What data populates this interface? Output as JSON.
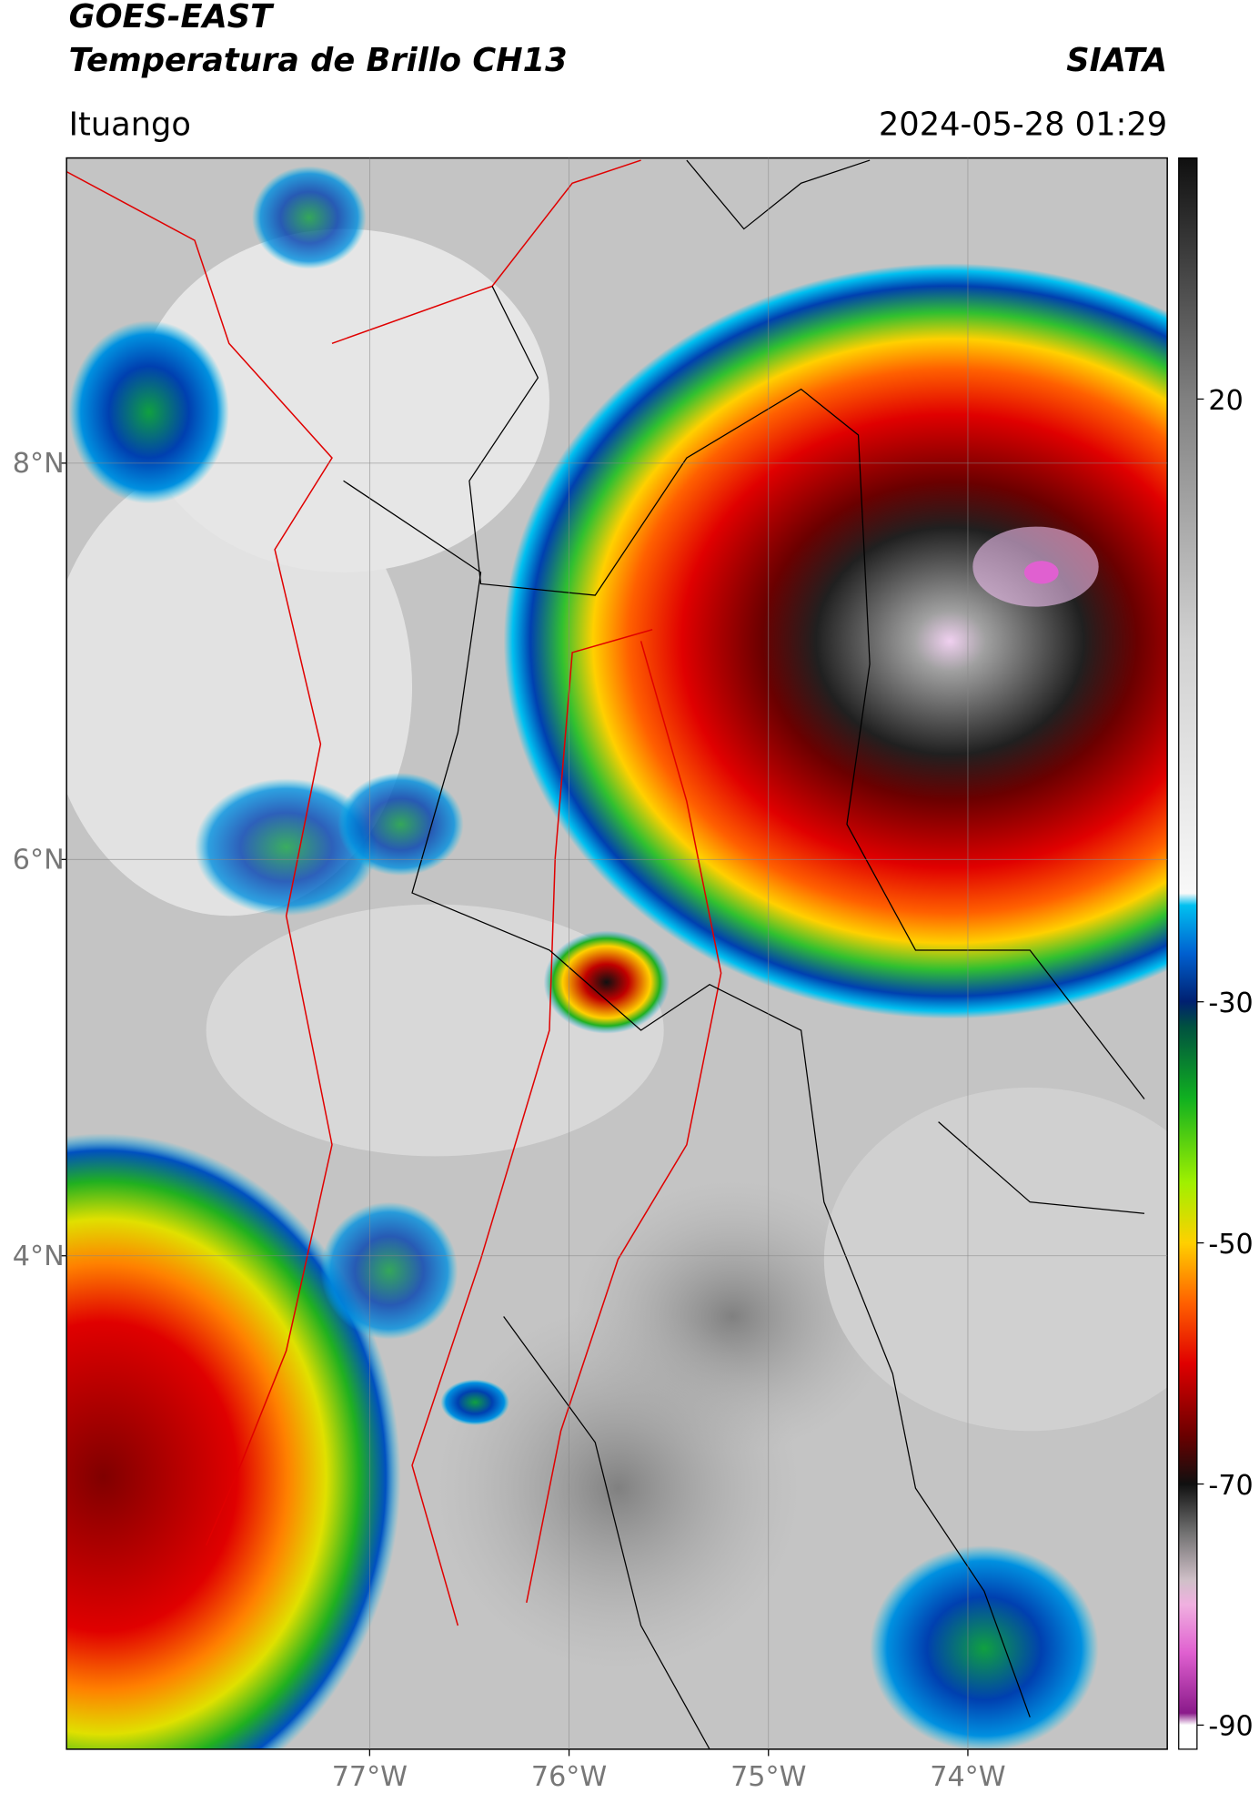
{
  "chart_data": {
    "type": "map",
    "title": "GOES-EAST",
    "subtitle": "Temperatura de Brillo CH13",
    "source": "SIATA",
    "location": "Ituango",
    "datetime": "2024-05-28 01:29",
    "xlim": [
      -78.52,
      -73.0
    ],
    "ylim": [
      1.51,
      9.54
    ],
    "xticks": [
      {
        "value": -77,
        "label": "77°W"
      },
      {
        "value": -76,
        "label": "76°W"
      },
      {
        "value": -75,
        "label": "75°W"
      },
      {
        "value": -74,
        "label": "74°W"
      }
    ],
    "yticks": [
      {
        "value": 4,
        "label": "4°N"
      },
      {
        "value": 6,
        "label": "6°N"
      },
      {
        "value": 8,
        "label": "8°N"
      }
    ],
    "grid": true,
    "clim": [
      -92,
      40
    ],
    "cticks": [
      -90,
      -70,
      -50,
      -30,
      20
    ],
    "colormap": [
      {
        "value": -92,
        "color": "#ffffff"
      },
      {
        "value": -90,
        "color": "#ffffff"
      },
      {
        "value": -89,
        "color": "#8a1a8a"
      },
      {
        "value": -84,
        "color": "#e060d0"
      },
      {
        "value": -80,
        "color": "#f0b0e0"
      },
      {
        "value": -78,
        "color": "#d0c0c8"
      },
      {
        "value": -74,
        "color": "#707070"
      },
      {
        "value": -70,
        "color": "#101010"
      },
      {
        "value": -66,
        "color": "#6a0000"
      },
      {
        "value": -60,
        "color": "#e00000"
      },
      {
        "value": -55,
        "color": "#ff6000"
      },
      {
        "value": -50,
        "color": "#ffd000"
      },
      {
        "value": -45,
        "color": "#a0f000"
      },
      {
        "value": -38,
        "color": "#10b020"
      },
      {
        "value": -32,
        "color": "#005040"
      },
      {
        "value": -30,
        "color": "#002070"
      },
      {
        "value": -26,
        "color": "#0060d0"
      },
      {
        "value": -22,
        "color": "#00c0f0"
      },
      {
        "value": -21,
        "color": "#f8f8f8"
      },
      {
        "value": 0,
        "color": "#d0d0d0"
      },
      {
        "value": 20,
        "color": "#808080"
      },
      {
        "value": 40,
        "color": "#101010"
      }
    ]
  }
}
